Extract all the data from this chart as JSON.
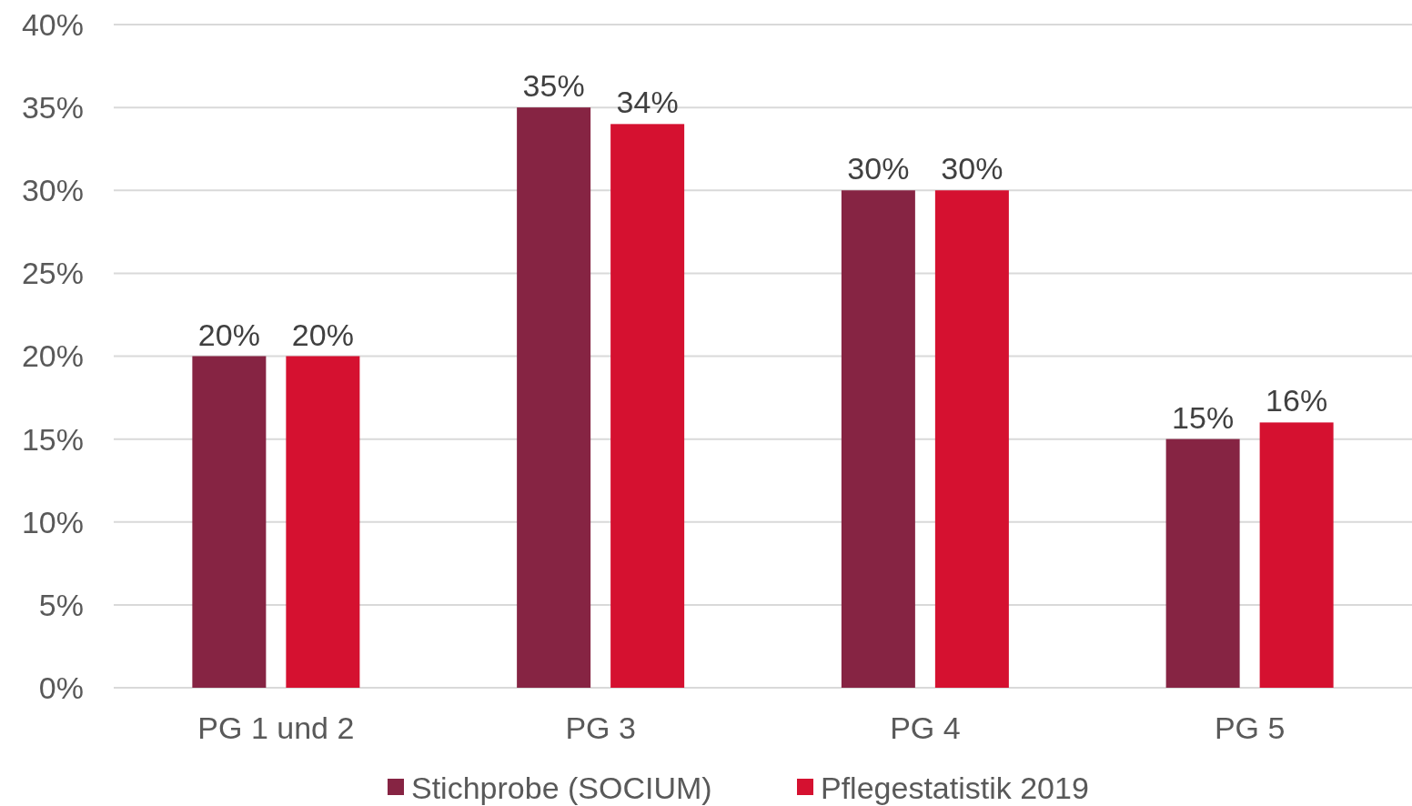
{
  "chart_data": {
    "type": "bar",
    "categories": [
      "PG 1 und 2",
      "PG 3",
      "PG 4",
      "PG 5"
    ],
    "series": [
      {
        "name": "Stichprobe (SOCIUM)",
        "color": "#862443",
        "values": [
          20,
          35,
          30,
          15
        ]
      },
      {
        "name": "Pflegestatistik 2019",
        "color": "#d51130",
        "values": [
          20,
          34,
          30,
          16
        ]
      }
    ],
    "ylim": [
      0,
      40
    ],
    "yticks": [
      {
        "value": 0,
        "label": "0%"
      },
      {
        "value": 5,
        "label": "5%"
      },
      {
        "value": 10,
        "label": "10%"
      },
      {
        "value": 15,
        "label": "15%"
      },
      {
        "value": 20,
        "label": "20%"
      },
      {
        "value": 25,
        "label": "25%"
      },
      {
        "value": 30,
        "label": "30%"
      },
      {
        "value": 35,
        "label": "35%"
      },
      {
        "value": 40,
        "label": "40%"
      }
    ],
    "value_labels": [
      [
        "20%",
        "35%",
        "30%",
        "15%"
      ],
      [
        "20%",
        "34%",
        "30%",
        "16%"
      ]
    ],
    "grid": "y",
    "legend": "bottom"
  }
}
